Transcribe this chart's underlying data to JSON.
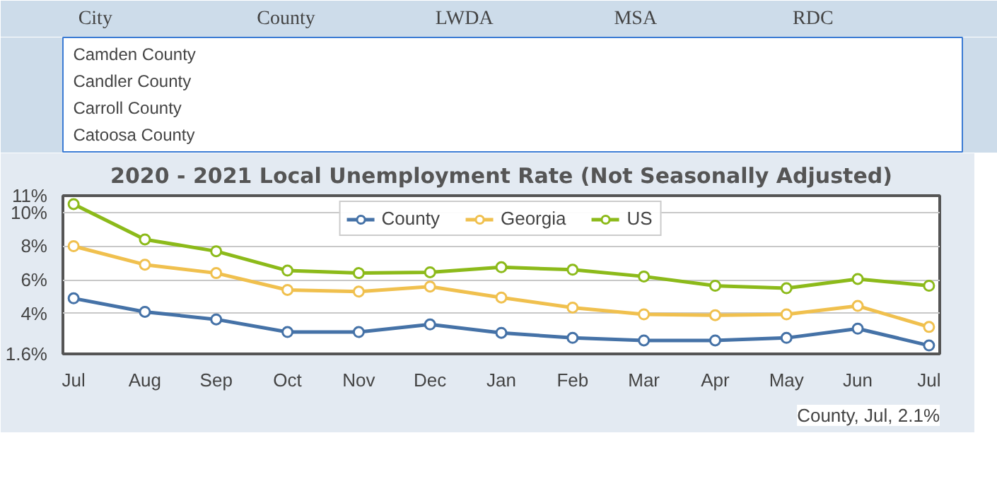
{
  "chart_data": [
    {
      "type": "other",
      "annotations": [
        "City",
        "County",
        "LWDA",
        "MSA",
        "RDC"
      ]
    },
    {
      "type": "other",
      "annotations": [
        "Camden County",
        "Candler County",
        "Carroll County",
        "Catoosa County"
      ]
    },
    {
      "type": "line",
      "title": "2020 - 2021 Local Unemployment Rate (Not Seasonally Adjusted)",
      "categories": [
        "Jul",
        "Aug",
        "Sep",
        "Oct",
        "Nov",
        "Dec",
        "Jan",
        "Feb",
        "Mar",
        "Apr",
        "May",
        "Jun",
        "Jul"
      ],
      "series": [
        {
          "name": "County",
          "color": "#4572a7",
          "values": [
            4.9,
            4.1,
            3.65,
            2.9,
            2.9,
            3.35,
            2.85,
            2.55,
            2.4,
            2.4,
            2.55,
            3.1,
            2.1
          ]
        },
        {
          "name": "Georgia",
          "color": "#f0c04e",
          "values": [
            8.0,
            6.9,
            6.4,
            5.4,
            5.3,
            5.6,
            4.95,
            4.35,
            3.95,
            3.9,
            3.95,
            4.45,
            3.2
          ]
        },
        {
          "name": "US",
          "color": "#8cba1a",
          "values": [
            10.5,
            8.4,
            7.7,
            6.55,
            6.4,
            6.45,
            6.75,
            6.6,
            6.2,
            5.65,
            5.5,
            6.05,
            5.65
          ]
        }
      ],
      "ylim": [
        1.6,
        11
      ],
      "yticks": [
        {
          "value": 1.6,
          "label": "1.6%"
        },
        {
          "value": 4,
          "label": "4%"
        },
        {
          "value": 6,
          "label": "6%"
        },
        {
          "value": 8,
          "label": "8%"
        },
        {
          "value": 10,
          "label": "10%"
        },
        {
          "value": 11,
          "label": "11%"
        }
      ],
      "grid": "y",
      "legend": "top",
      "marker": "circle",
      "line_style": "solid",
      "annotations": [
        "County, Jul, 2.1%"
      ]
    }
  ]
}
